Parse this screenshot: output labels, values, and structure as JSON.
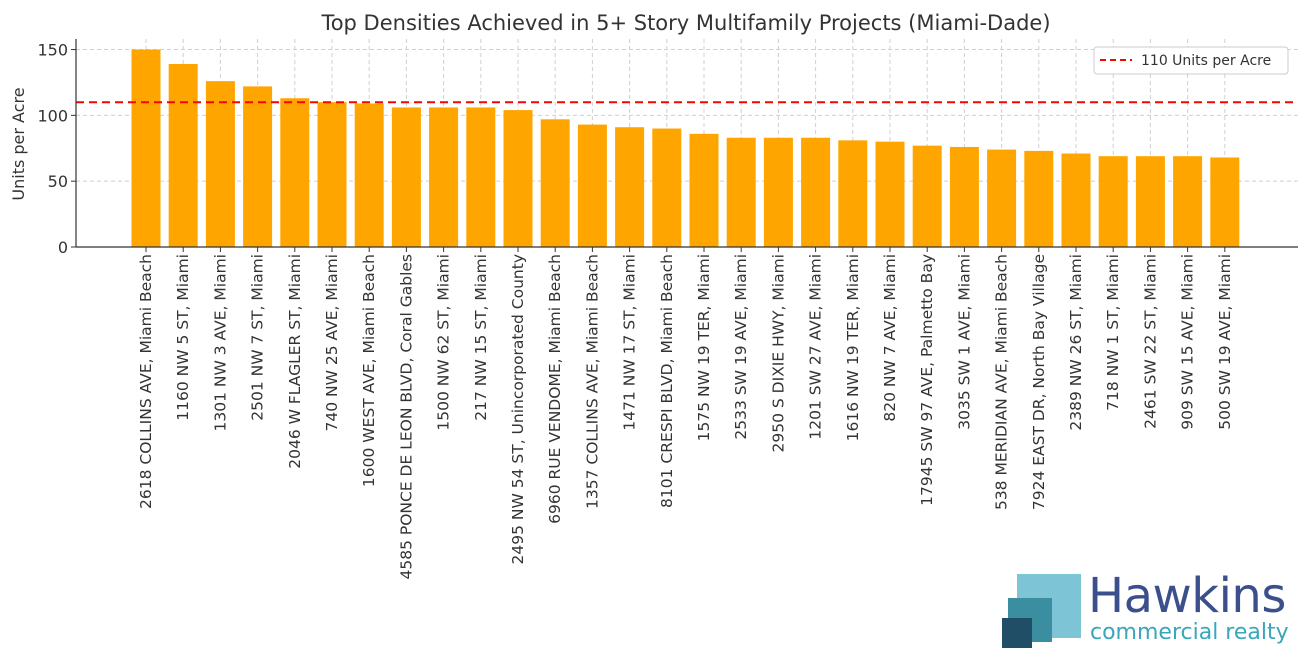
{
  "chart_data": {
    "type": "bar",
    "title": "Top Densities Achieved in 5+ Story Multifamily Projects (Miami-Dade)",
    "xlabel": "",
    "ylabel": "Units per Acre",
    "ylim": [
      0,
      158
    ],
    "yticks": [
      0,
      50,
      100,
      150
    ],
    "grid": true,
    "legend_position": "top-right",
    "bar_color": "#ffa500",
    "categories": [
      "2618 COLLINS AVE, Miami Beach",
      "1160 NW 5 ST, Miami",
      "1301 NW 3 AVE, Miami",
      "2501 NW 7 ST, Miami",
      "2046 W FLAGLER ST, Miami",
      "740 NW 25 AVE, Miami",
      "1600 WEST AVE, Miami Beach",
      "4585 PONCE DE LEON BLVD, Coral Gables",
      "1500 NW 62 ST, Miami",
      "217 NW 15 ST, Miami",
      "2495 NW 54 ST, Unincorporated County",
      "6960 RUE VENDOME, Miami Beach",
      "1357 COLLINS AVE, Miami Beach",
      "1471 NW 17 ST, Miami",
      "8101 CRESPI BLVD, Miami Beach",
      "1575 NW 19 TER, Miami",
      "2533 SW 19 AVE, Miami",
      "2950 S DIXIE HWY, Miami",
      "1201 SW 27 AVE, Miami",
      "1616 NW 19 TER, Miami",
      "820 NW 7 AVE, Miami",
      "17945 SW 97 AVE, Palmetto Bay",
      "3035 SW 1 AVE, Miami",
      "538 MERIDIAN AVE, Miami Beach",
      "7924 EAST DR, North Bay Village",
      "2389 NW 26 ST, Miami",
      "718 NW 1 ST, Miami",
      "2461 SW 22 ST, Miami",
      "909 SW 15 AVE, Miami",
      "500 SW 19 AVE, Miami"
    ],
    "values": [
      150,
      139,
      126,
      122,
      113,
      110,
      109,
      106,
      106,
      106,
      104,
      97,
      93,
      91,
      90,
      86,
      83,
      83,
      83,
      81,
      80,
      77,
      76,
      74,
      73,
      71,
      69,
      69,
      69,
      68
    ],
    "reference_line": {
      "value": 110,
      "label": "110 Units per Acre",
      "color": "#ff0000",
      "style": "dashed"
    }
  },
  "logo": {
    "name": "Hawkins",
    "tagline": "commercial realty",
    "colors": [
      "#1f4e66",
      "#3a8ea0",
      "#7cc4d6"
    ]
  }
}
